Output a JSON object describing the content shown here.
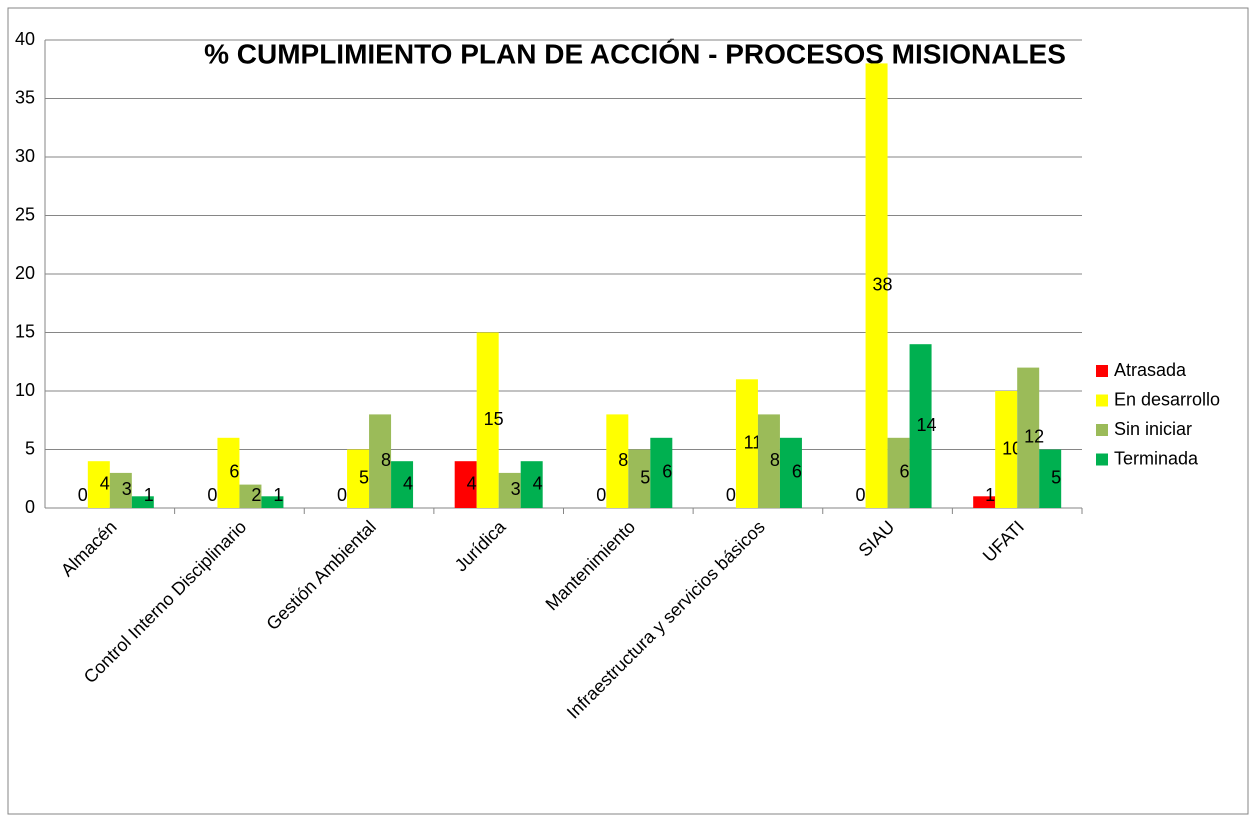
{
  "chart_data": {
    "type": "bar",
    "title": "% CUMPLIMIENTO PLAN DE ACCIÓN - PROCESOS MISIONALES",
    "categories": [
      "Almacén",
      "Control Interno Disciplinario",
      "Gestión Ambiental",
      "Jurídica",
      "Mantenimiento",
      "Infraestructura y servicios básicos",
      "SIAU",
      "UFATI"
    ],
    "series": [
      {
        "name": "Atrasada",
        "color": "#ff0000",
        "values": [
          0,
          0,
          0,
          4,
          0,
          0,
          0,
          1
        ]
      },
      {
        "name": "En desarrollo",
        "color": "#ffff00",
        "values": [
          4,
          6,
          5,
          15,
          8,
          11,
          38,
          10
        ]
      },
      {
        "name": "Sin iniciar",
        "color": "#9bbb59",
        "values": [
          3,
          2,
          8,
          3,
          5,
          8,
          6,
          12
        ]
      },
      {
        "name": "Terminada",
        "color": "#00b050",
        "values": [
          1,
          1,
          4,
          4,
          6,
          6,
          14,
          5
        ]
      }
    ],
    "ylim": [
      0,
      40
    ],
    "yticks": [
      0,
      5,
      10,
      15,
      20,
      25,
      30,
      35,
      40
    ],
    "grid": true,
    "legend": "right"
  }
}
